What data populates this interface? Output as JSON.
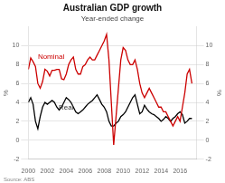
{
  "chart_data": {
    "type": "line",
    "title": "Australian GDP growth",
    "subtitle": "Year-ended change",
    "source": "Source: ABS",
    "ylabel": "%",
    "y2label": "%",
    "grid": "y",
    "x": [
      2000.0,
      2000.25,
      2000.5,
      2000.75,
      2001.0,
      2001.25,
      2001.5,
      2001.75,
      2002.0,
      2002.25,
      2002.5,
      2002.75,
      2003.0,
      2003.25,
      2003.5,
      2003.75,
      2004.0,
      2004.25,
      2004.5,
      2004.75,
      2005.0,
      2005.25,
      2005.5,
      2005.75,
      2006.0,
      2006.25,
      2006.5,
      2006.75,
      2007.0,
      2007.25,
      2007.5,
      2007.75,
      2008.0,
      2008.25,
      2008.5,
      2008.75,
      2009.0,
      2009.25,
      2009.5,
      2009.75,
      2010.0,
      2010.25,
      2010.5,
      2010.75,
      2011.0,
      2011.25,
      2011.5,
      2011.75,
      2012.0,
      2012.25,
      2012.5,
      2012.75,
      2013.0,
      2013.25,
      2013.5,
      2013.75,
      2014.0,
      2014.25,
      2014.5,
      2014.75,
      2015.0,
      2015.25,
      2015.5,
      2015.75,
      2016.0,
      2016.25,
      2016.5,
      2016.75,
      2017.0,
      2017.25
    ],
    "series": [
      {
        "name": "Nominal",
        "color": "#cc0000",
        "values": [
          7.5,
          8.7,
          8.3,
          7.8,
          6.0,
          5.5,
          6.2,
          7.5,
          7.3,
          6.8,
          7.4,
          7.4,
          7.5,
          7.5,
          6.5,
          6.4,
          7.0,
          8.0,
          8.5,
          8.8,
          7.5,
          7.0,
          7.0,
          7.8,
          8.0,
          8.5,
          8.8,
          8.5,
          8.5,
          9.0,
          9.5,
          10.0,
          10.5,
          11.2,
          8.5,
          4.0,
          -0.5,
          2.5,
          5.5,
          8.5,
          9.8,
          9.5,
          8.5,
          8.0,
          8.0,
          8.5,
          7.5,
          6.0,
          5.0,
          4.5,
          5.0,
          5.5,
          5.0,
          4.5,
          4.0,
          3.5,
          3.5,
          3.0,
          3.0,
          2.5,
          2.0,
          1.5,
          2.0,
          2.5,
          2.0,
          3.5,
          5.0,
          7.0,
          7.5,
          6.0
        ]
      },
      {
        "name": "Real",
        "color": "#000000",
        "values": [
          4.0,
          4.5,
          3.8,
          2.0,
          1.2,
          2.5,
          3.5,
          4.0,
          3.8,
          4.0,
          4.2,
          4.0,
          3.5,
          3.2,
          3.5,
          4.0,
          4.5,
          4.3,
          4.0,
          3.5,
          3.0,
          2.8,
          3.0,
          3.2,
          3.5,
          3.8,
          4.0,
          4.2,
          4.5,
          4.8,
          4.3,
          3.8,
          3.5,
          3.0,
          2.0,
          1.5,
          1.5,
          1.8,
          2.0,
          2.5,
          2.7,
          3.0,
          3.5,
          4.0,
          4.5,
          4.8,
          3.8,
          2.8,
          3.0,
          3.7,
          3.3,
          3.0,
          2.8,
          2.7,
          2.5,
          2.3,
          2.0,
          2.2,
          2.5,
          2.3,
          2.0,
          2.3,
          2.5,
          2.8,
          3.0,
          2.7,
          1.8,
          2.0,
          2.3,
          2.3
        ]
      }
    ],
    "xlim": [
      2000,
      2017.75
    ],
    "xticks": [
      2000,
      2002,
      2004,
      2006,
      2008,
      2010,
      2012,
      2014,
      2016
    ],
    "ylim": [
      -2,
      12
    ],
    "yticks": [
      -2,
      0,
      2,
      4,
      6,
      8,
      10
    ],
    "y2lim": [
      -2,
      12
    ],
    "y2ticks": [
      -2,
      0,
      2,
      4,
      6,
      8,
      10
    ],
    "annotations": [
      {
        "text": "Nominal",
        "x": 2001.0,
        "y": 8.4,
        "color": "#cc0000"
      },
      {
        "text": "Real",
        "x": 2003.2,
        "y": 3.1,
        "color": "#333333"
      }
    ]
  }
}
